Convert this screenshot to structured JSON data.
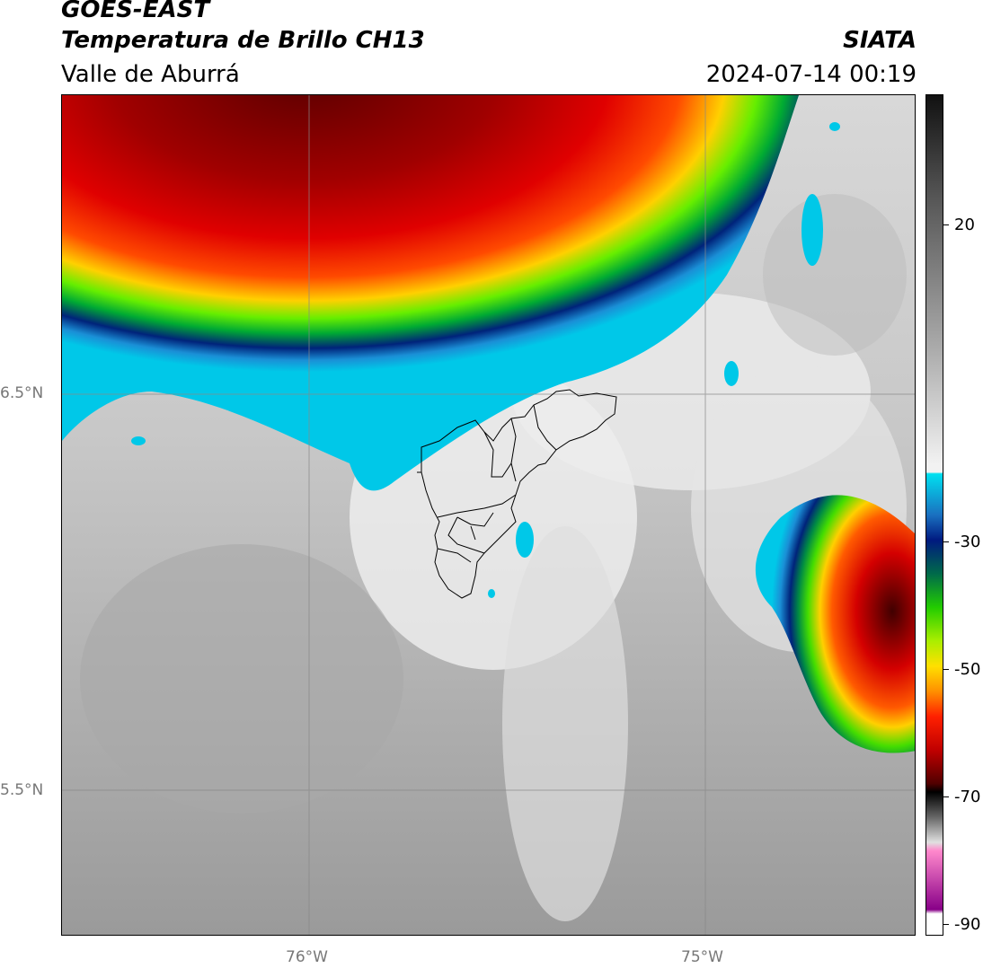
{
  "header": {
    "satellite": "GOES-EAST",
    "product": "Temperatura de Brillo CH13",
    "region": "Valle de Aburrá",
    "org": "SIATA",
    "datetime": "2024-07-14 00:19"
  },
  "map": {
    "lat_labels": [
      "6.5°N",
      "5.5°N"
    ],
    "lon_labels": [
      "76°W",
      "75°W"
    ]
  },
  "colorbar": {
    "tick_labels": [
      "20",
      "-30",
      "-50",
      "-70",
      "-90"
    ]
  }
}
